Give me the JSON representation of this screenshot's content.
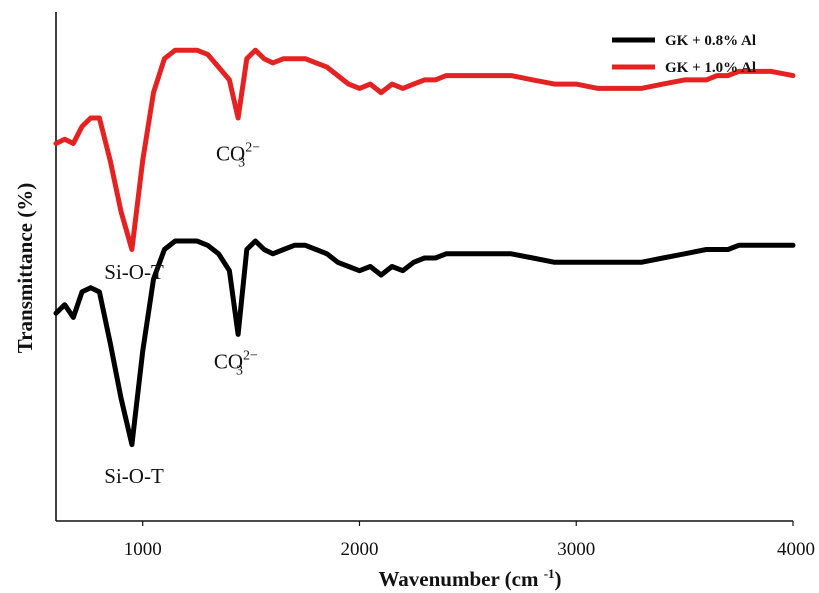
{
  "chart_data": {
    "type": "line",
    "xlabel": "Wavenumber (cm-1)",
    "ylabel": "Transmittance (%)",
    "x_ticks": [
      "1000",
      "2000",
      "3000",
      "4000"
    ],
    "xlim": [
      600,
      4000
    ],
    "y_ticks_shown": false,
    "grid": false,
    "legend_position": "top-right",
    "series": [
      {
        "name": "GK + 0.8% Al",
        "color": "#000000",
        "x": [
          600,
          640,
          680,
          720,
          760,
          800,
          850,
          900,
          950,
          1000,
          1050,
          1100,
          1150,
          1200,
          1250,
          1300,
          1350,
          1400,
          1440,
          1480,
          1520,
          1560,
          1600,
          1650,
          1700,
          1750,
          1800,
          1850,
          1900,
          1950,
          2000,
          2050,
          2100,
          2150,
          2200,
          2250,
          2300,
          2350,
          2400,
          2500,
          2600,
          2700,
          2800,
          2900,
          3000,
          3100,
          3200,
          3300,
          3400,
          3500,
          3600,
          3650,
          3700,
          3750,
          3800,
          3850,
          3900,
          4000
        ],
        "y": [
          14,
          16,
          13,
          19,
          20,
          19,
          7,
          -6,
          -17,
          5,
          22,
          29,
          31,
          31,
          31,
          30,
          28,
          24,
          9,
          29,
          31,
          29,
          28,
          29,
          30,
          30,
          29,
          28,
          26,
          25,
          24,
          25,
          23,
          25,
          24,
          26,
          27,
          27,
          28,
          28,
          28,
          28,
          27,
          26,
          26,
          26,
          26,
          26,
          27,
          28,
          29,
          29,
          29,
          30,
          30,
          30,
          30,
          30
        ]
      },
      {
        "name": "GK + 1.0% Al",
        "color": "#e52222",
        "x": [
          600,
          640,
          680,
          720,
          760,
          800,
          850,
          900,
          950,
          1000,
          1050,
          1100,
          1150,
          1200,
          1250,
          1300,
          1350,
          1400,
          1440,
          1480,
          1520,
          1560,
          1600,
          1650,
          1700,
          1750,
          1800,
          1850,
          1900,
          1950,
          2000,
          2050,
          2100,
          2150,
          2200,
          2250,
          2300,
          2350,
          2400,
          2500,
          2600,
          2700,
          2800,
          2900,
          3000,
          3100,
          3200,
          3300,
          3400,
          3500,
          3600,
          3650,
          3700,
          3750,
          3800,
          3850,
          3900,
          4000
        ],
        "y": [
          54,
          55,
          54,
          58,
          60,
          60,
          50,
          38,
          29,
          50,
          66,
          74,
          76,
          76,
          76,
          75,
          72,
          69,
          60,
          74,
          76,
          74,
          73,
          74,
          74,
          74,
          73,
          72,
          70,
          68,
          67,
          68,
          66,
          68,
          67,
          68,
          69,
          69,
          70,
          70,
          70,
          70,
          69,
          68,
          68,
          67,
          67,
          67,
          68,
          69,
          69,
          70,
          70,
          71,
          71,
          71,
          71,
          70
        ]
      }
    ],
    "annotations": [
      {
        "text": "Si-O-T",
        "x": 960,
        "y": 22,
        "series": "GK + 1.0% Al"
      },
      {
        "text": "CO",
        "sub": "3",
        "sup": "2−",
        "x": 1440,
        "y": 50,
        "series": "GK + 1.0% Al"
      },
      {
        "text": "Si-O-T",
        "x": 960,
        "y": -26,
        "series": "GK + 0.8% Al"
      },
      {
        "text": "CO",
        "sub": "3",
        "sup": "2−",
        "x": 1430,
        "y": 1,
        "series": "GK + 0.8% Al"
      }
    ]
  }
}
